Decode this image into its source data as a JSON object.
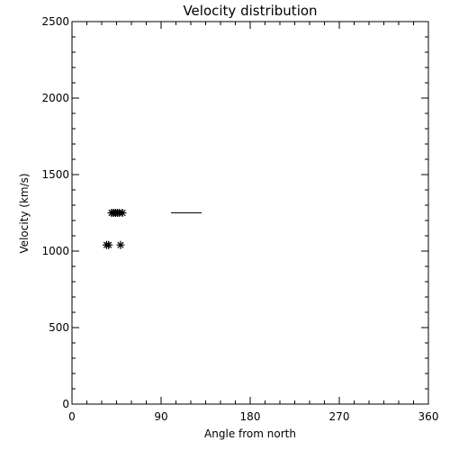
{
  "chart_data": {
    "type": "scatter",
    "title": "Velocity distribution",
    "xlabel": "Angle from north",
    "ylabel": "Velocity (km/s)",
    "xlim": [
      0,
      360
    ],
    "ylim": [
      0,
      2500
    ],
    "xticks": [
      0,
      90,
      180,
      270,
      360
    ],
    "yticks": [
      0,
      500,
      1000,
      1500,
      2000,
      2500
    ],
    "grid": false,
    "legend": "none",
    "marker": "asterisk",
    "points": [
      {
        "x": 35,
        "y": 1040
      },
      {
        "x": 37,
        "y": 1040
      },
      {
        "x": 49,
        "y": 1040
      },
      {
        "x": 40,
        "y": 1250
      },
      {
        "x": 42,
        "y": 1250
      },
      {
        "x": 44,
        "y": 1250
      },
      {
        "x": 46,
        "y": 1250
      },
      {
        "x": 48,
        "y": 1250
      },
      {
        "x": 51,
        "y": 1250
      }
    ],
    "segments": [
      {
        "x1": 100,
        "x2": 131,
        "y": 1250
      }
    ],
    "color": "#000000"
  }
}
